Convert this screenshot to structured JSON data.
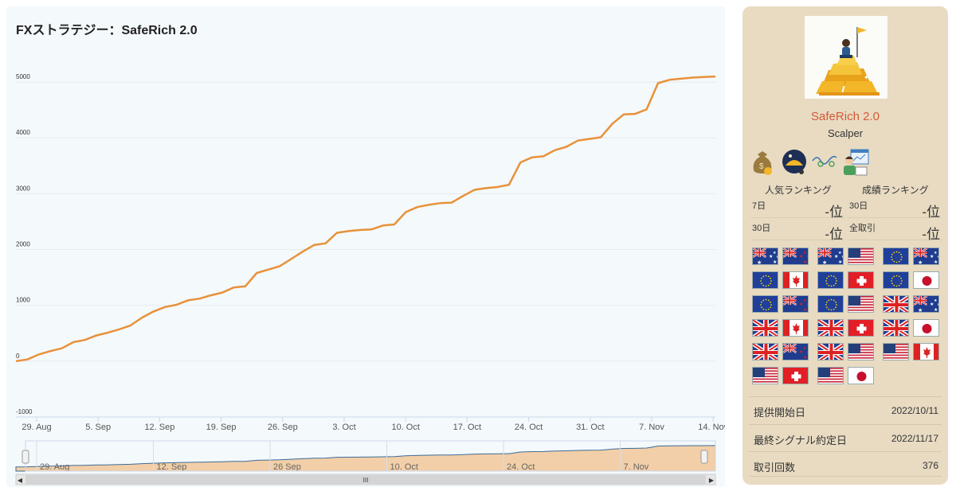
{
  "chart": {
    "title": "FXストラテジー：SafeRich 2.0"
  },
  "chart_data": {
    "type": "line",
    "y_ticks": [
      -1000,
      0,
      1000,
      2000,
      3000,
      4000,
      5000
    ],
    "ylim": [
      -1000,
      5500
    ],
    "x_ticks": [
      "29. Aug",
      "5. Sep",
      "12. Sep",
      "19. Sep",
      "26. Sep",
      "3. Oct",
      "10. Oct",
      "17. Oct",
      "24. Oct",
      "31. Oct",
      "7. Nov",
      "14. Nov"
    ],
    "navigator_ticks": [
      "29. Aug",
      "12. Sep",
      "26 Sep",
      "10. Oct",
      "24. Oct",
      "7. Nov"
    ],
    "series": [
      {
        "color": "#e8913a",
        "x": [
          0,
          2,
          4,
          6,
          8,
          10,
          12,
          14,
          16,
          18,
          20,
          22,
          24,
          26,
          28,
          30,
          32,
          34,
          36,
          38,
          40,
          42,
          44,
          46,
          48,
          50,
          52,
          54,
          56,
          58,
          60,
          62,
          64,
          66,
          68,
          70,
          72,
          74,
          76,
          78,
          80,
          82,
          84,
          86,
          88,
          90,
          92,
          94,
          96,
          98,
          100,
          102,
          104,
          106,
          108,
          110,
          112,
          114,
          116,
          118,
          120,
          122
        ],
        "values": [
          0,
          30,
          120,
          180,
          230,
          340,
          380,
          460,
          510,
          570,
          640,
          780,
          890,
          970,
          1010,
          1090,
          1120,
          1180,
          1230,
          1320,
          1340,
          1580,
          1640,
          1700,
          1830,
          1960,
          2080,
          2110,
          2300,
          2330,
          2350,
          2360,
          2430,
          2450,
          2670,
          2760,
          2800,
          2830,
          2840,
          2960,
          3070,
          3100,
          3120,
          3160,
          3560,
          3650,
          3670,
          3780,
          3840,
          3950,
          3980,
          4010,
          4250,
          4420,
          4430,
          4510,
          4980,
          5040,
          5060,
          5080,
          5090,
          5100
        ]
      }
    ]
  },
  "colors": {
    "line": "#e8913a",
    "navigator_fill": "#f2cfa8",
    "card_bg": "#e8dbc2",
    "name_accent": "#d45a35"
  },
  "strategy": {
    "name": "SafeRich 2.0",
    "type": "Scalper",
    "feature_icons": [
      "money-bag-icon",
      "night-moon-icon",
      "wave-icon",
      "analyst-icon"
    ]
  },
  "ranking": {
    "popular_label": "人気ランキング",
    "performance_label": "成績ランキング",
    "cells": [
      {
        "label": "7日",
        "value": "-位"
      },
      {
        "label": "30日",
        "value": "-位"
      },
      {
        "label": "30日",
        "value": "-位"
      },
      {
        "label": "全取引",
        "value": "-位"
      }
    ]
  },
  "currency_pairs": [
    [
      "au",
      "nz"
    ],
    [
      "au",
      "us"
    ],
    [
      "eu",
      "au"
    ],
    [
      "eu",
      "ca"
    ],
    [
      "eu",
      "ch"
    ],
    [
      "eu",
      "jp"
    ],
    [
      "eu",
      "nz"
    ],
    [
      "eu",
      "us"
    ],
    [
      "gb",
      "au"
    ],
    [
      "gb",
      "ca"
    ],
    [
      "gb",
      "ch"
    ],
    [
      "gb",
      "jp"
    ],
    [
      "gb",
      "nz"
    ],
    [
      "gb",
      "us"
    ],
    [
      "us",
      "ca"
    ],
    [
      "us",
      "ch"
    ],
    [
      "us",
      "jp"
    ]
  ],
  "info": [
    {
      "key": "提供開始日",
      "value": "2022/10/11"
    },
    {
      "key": "最終シグナル約定日",
      "value": "2022/11/17"
    },
    {
      "key": "取引回数",
      "value": "376"
    }
  ]
}
